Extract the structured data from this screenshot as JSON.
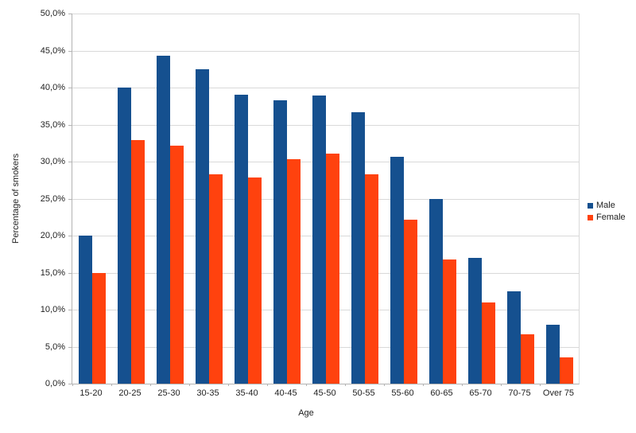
{
  "chart_data": {
    "type": "bar",
    "title": "",
    "xlabel": "Age",
    "ylabel": "Percentage of smokers",
    "categories": [
      "15-20",
      "20-25",
      "25-30",
      "30-35",
      "35-40",
      "40-45",
      "45-50",
      "50-55",
      "55-60",
      "60-65",
      "65-70",
      "70-75",
      "Over 75"
    ],
    "series": [
      {
        "name": "Male",
        "color": "#15508F",
        "values": [
          20.0,
          40.0,
          44.3,
          42.5,
          39.0,
          38.3,
          38.9,
          36.7,
          30.7,
          24.9,
          17.0,
          12.5,
          8.0
        ]
      },
      {
        "name": "Female",
        "color": "#FF420E",
        "values": [
          15.0,
          32.9,
          32.2,
          28.3,
          27.9,
          30.3,
          31.1,
          28.3,
          22.2,
          16.8,
          11.0,
          6.7,
          3.6
        ]
      }
    ],
    "ylim": [
      0,
      50
    ],
    "ytick_step": 5,
    "ytick_labels": [
      "0,0%",
      "5,0%",
      "10,0%",
      "15,0%",
      "20,0%",
      "25,0%",
      "30,0%",
      "35,0%",
      "40,0%",
      "45,0%",
      "50,0%"
    ],
    "grid": "horizontal",
    "legend_position": "right"
  },
  "colors": {
    "background": "#ffffff",
    "gridline": "#d9d9d9",
    "axis": "#b3b3b3",
    "text": "#1f1f1f",
    "male": "#15508F",
    "female": "#FF420E"
  }
}
